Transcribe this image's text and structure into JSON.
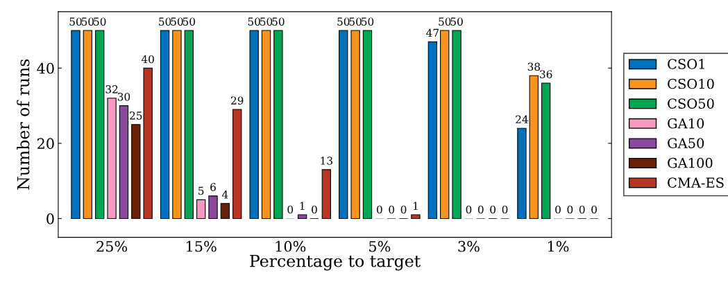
{
  "chart_data": {
    "type": "bar",
    "xlabel": "Percentage to target",
    "ylabel": "Number of runs",
    "categories": [
      "25%",
      "15%",
      "10%",
      "5%",
      "3%",
      "1%"
    ],
    "series": [
      {
        "name": "CSO1",
        "color": "#0072bd",
        "values": [
          50,
          50,
          50,
          50,
          47,
          24
        ]
      },
      {
        "name": "CSO10",
        "color": "#f7931e",
        "values": [
          50,
          50,
          50,
          50,
          50,
          38
        ]
      },
      {
        "name": "CSO50",
        "color": "#00a651",
        "values": [
          50,
          50,
          50,
          50,
          50,
          36
        ]
      },
      {
        "name": "GA10",
        "color": "#f49ac1",
        "values": [
          32,
          5,
          0,
          0,
          0,
          0
        ]
      },
      {
        "name": "GA50",
        "color": "#8e479e",
        "values": [
          30,
          6,
          1,
          0,
          0,
          0
        ]
      },
      {
        "name": "GA100",
        "color": "#6b2106",
        "values": [
          25,
          4,
          0,
          0,
          0,
          0
        ]
      },
      {
        "name": "CMA-ES",
        "color": "#b83423",
        "values": [
          40,
          29,
          13,
          1,
          0,
          0
        ]
      }
    ],
    "ylim": [
      -5,
      55
    ],
    "yticks": [
      0,
      20,
      40
    ],
    "grid": false,
    "legend": "right",
    "data_labels": true
  }
}
